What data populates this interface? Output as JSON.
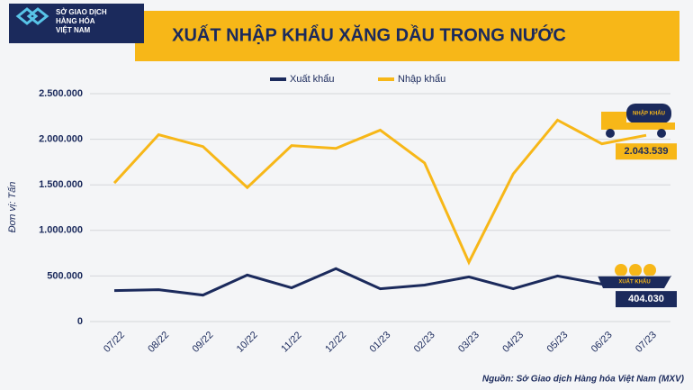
{
  "logo": {
    "lines": [
      "SỞ GIAO DỊCH",
      "HÀNG HÓA",
      "VIỆT NAM"
    ]
  },
  "chart_data": {
    "type": "line",
    "title": "XUẤT NHẬP KHẨU XĂNG DẦU TRONG NƯỚC",
    "y_label": "Đơn vị: Tấn",
    "source": "Nguồn: Sở Giao dịch Hàng hóa Việt Nam (MXV)",
    "icon_labels": [
      "NHẬP KHẨU",
      "XUẤT KHẨU"
    ],
    "categories": [
      "07/22",
      "08/22",
      "09/22",
      "10/22",
      "11/22",
      "12/22",
      "01/23",
      "02/23",
      "03/23",
      "04/23",
      "05/23",
      "06/23",
      "07/23"
    ],
    "series": [
      {
        "name": "Xuất khẩu",
        "color": "#1b2a5c",
        "values": [
          340000,
          350000,
          290000,
          510000,
          370000,
          580000,
          360000,
          400000,
          490000,
          360000,
          500000,
          410000,
          404030
        ],
        "value_labels": [
          null,
          null,
          null,
          null,
          null,
          null,
          null,
          null,
          null,
          null,
          null,
          null,
          "404.030"
        ]
      },
      {
        "name": "Nhập khẩu",
        "color": "#f7b718",
        "values": [
          1520000,
          2050000,
          1920000,
          1470000,
          1930000,
          1900000,
          2100000,
          1740000,
          650000,
          1620000,
          2210000,
          1950000,
          2043539
        ],
        "value_labels": [
          null,
          null,
          null,
          null,
          null,
          null,
          null,
          null,
          null,
          null,
          null,
          null,
          "2.043.539"
        ]
      }
    ],
    "ylim": [
      0,
      2500000
    ],
    "yticks": [
      0,
      {
        "value": 500000,
        "label": "500.000"
      },
      {
        "value": 1000000,
        "label": "1.000.000"
      },
      {
        "value": 1500000,
        "label": "1.500.000"
      },
      {
        "value": 2000000,
        "label": "2.000.000"
      },
      {
        "value": 2500000,
        "label": "2.500.000"
      }
    ],
    "grid": true
  }
}
